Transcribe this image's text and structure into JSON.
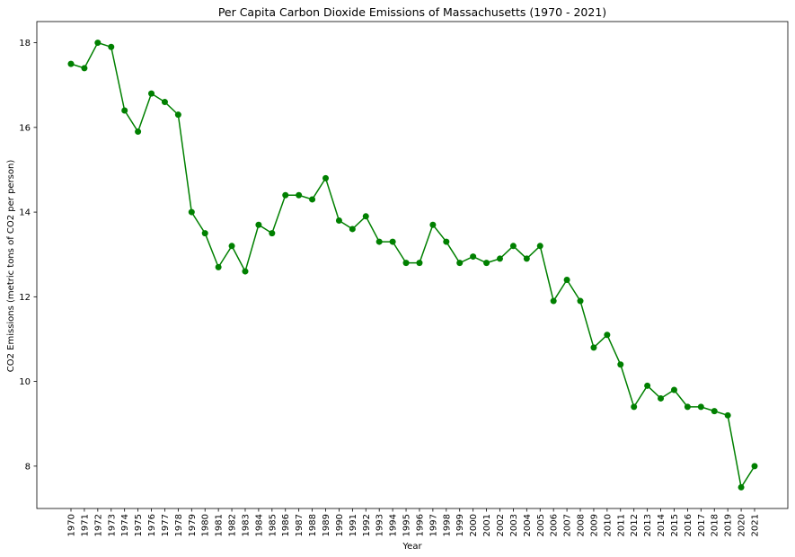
{
  "chart_data": {
    "type": "line",
    "title": "Per Capita Carbon Dioxide Emissions of Massachusetts (1970 - 2021)",
    "xlabel": "Year",
    "ylabel": "CO2 Emissions (metric tons of CO2 per person)",
    "ylim": [
      7.0,
      18.5
    ],
    "yticks": [
      8,
      10,
      12,
      14,
      16,
      18
    ],
    "grid": false,
    "legend": "none",
    "marker": "circle",
    "color": "#008000",
    "series": [
      {
        "x": [
          "1970",
          "1971",
          "1972",
          "1973",
          "1974",
          "1975",
          "1976",
          "1977",
          "1978",
          "1979",
          "1980",
          "1981",
          "1982",
          "1983",
          "1984",
          "1985",
          "1986",
          "1987",
          "1988",
          "1989",
          "1990",
          "1991",
          "1992",
          "1993",
          "1994",
          "1995",
          "1996",
          "1997",
          "1998",
          "1999",
          "2000",
          "2001",
          "2002",
          "2003",
          "2004",
          "2005",
          "2006",
          "2007",
          "2008",
          "2009",
          "2010",
          "2011",
          "2012",
          "2013",
          "2014",
          "2015",
          "2016",
          "2017",
          "2018",
          "2019",
          "2020",
          "2021"
        ],
        "values": [
          17.5,
          17.4,
          18.0,
          17.9,
          16.4,
          15.9,
          16.8,
          16.6,
          16.3,
          14.0,
          13.5,
          12.7,
          13.2,
          12.6,
          13.7,
          13.5,
          14.4,
          14.4,
          14.3,
          14.8,
          13.8,
          13.6,
          13.9,
          13.3,
          13.3,
          12.8,
          12.8,
          13.7,
          13.3,
          12.8,
          12.95,
          12.8,
          12.9,
          13.2,
          12.9,
          13.2,
          11.9,
          12.4,
          11.9,
          10.8,
          11.1,
          10.4,
          9.4,
          9.9,
          9.6,
          9.8,
          9.4,
          9.4,
          9.3,
          9.2,
          7.5,
          8.0
        ]
      }
    ]
  }
}
